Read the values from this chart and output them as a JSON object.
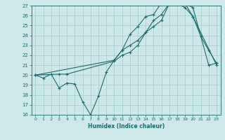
{
  "xlabel": "Humidex (Indice chaleur)",
  "bg_color": "#cce8e8",
  "grid_color": "#aacfcf",
  "line_color": "#1a6b6b",
  "xlim": [
    -0.5,
    23.5
  ],
  "ylim": [
    16,
    27
  ],
  "yticks": [
    16,
    17,
    18,
    19,
    20,
    21,
    22,
    23,
    24,
    25,
    26,
    27
  ],
  "xticks": [
    0,
    1,
    2,
    3,
    4,
    5,
    6,
    7,
    8,
    9,
    10,
    11,
    12,
    13,
    14,
    15,
    16,
    17,
    18,
    19,
    20,
    21,
    22,
    23
  ],
  "line1_x": [
    0,
    1,
    2,
    3,
    4,
    5,
    6,
    7,
    8,
    9,
    10,
    11,
    12,
    13,
    14,
    15,
    16,
    17,
    18,
    19,
    20,
    21,
    22,
    23
  ],
  "line1_y": [
    20.0,
    19.7,
    20.1,
    18.7,
    19.2,
    19.1,
    17.3,
    16.0,
    17.9,
    20.3,
    21.5,
    22.5,
    24.1,
    24.9,
    25.9,
    26.1,
    27.3,
    27.3,
    27.2,
    26.8,
    25.9,
    23.9,
    22.5,
    21.2
  ],
  "line2_x": [
    0,
    3,
    4,
    10,
    11,
    12,
    13,
    14,
    15,
    16,
    17,
    18,
    19,
    20,
    22,
    23
  ],
  "line2_y": [
    20.0,
    20.1,
    20.1,
    21.4,
    22.0,
    22.3,
    23.0,
    24.3,
    25.5,
    26.1,
    27.2,
    27.2,
    27.2,
    26.8,
    21.0,
    21.2
  ],
  "line3_x": [
    0,
    10,
    11,
    12,
    13,
    14,
    15,
    16,
    17,
    18,
    19,
    20,
    23
  ],
  "line3_y": [
    20.0,
    21.5,
    22.5,
    23.0,
    23.5,
    24.3,
    24.9,
    25.5,
    27.2,
    27.2,
    27.2,
    25.9,
    21.0
  ]
}
